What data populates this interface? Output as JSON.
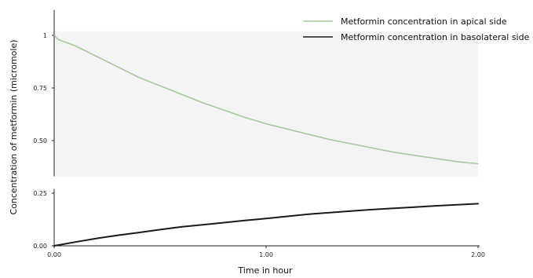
{
  "chart_data": {
    "type": "line",
    "title": "",
    "xlabel": "Time in hour",
    "ylabel": "Concentration of metformin (micromole)",
    "xlim": [
      0,
      2
    ],
    "ylim": [
      0,
      1.0
    ],
    "x_ticks": [
      {
        "value": 0,
        "label": "0.00"
      },
      {
        "value": 1,
        "label": "1.00"
      },
      {
        "value": 2,
        "label": "2.00"
      }
    ],
    "y_ticks": [
      {
        "value": 0,
        "label": "0.00"
      },
      {
        "value": 0.25,
        "label": "0.25"
      },
      {
        "value": 0.5,
        "label": "0.50"
      },
      {
        "value": 0.75,
        "label": "0.75"
      },
      {
        "value": 1,
        "label": "1"
      }
    ],
    "y_axis_break": [
      0.27,
      0.33
    ],
    "grid": false,
    "legend_position": "top-right",
    "series": [
      {
        "name": "Metformin concentration in apical side",
        "color": "#a8c8a0",
        "x": [
          0,
          0.02,
          0.1,
          0.2,
          0.3,
          0.4,
          0.5,
          0.6,
          0.7,
          0.8,
          0.9,
          1.0,
          1.1,
          1.2,
          1.3,
          1.4,
          1.5,
          1.6,
          1.7,
          1.8,
          1.9,
          2.0
        ],
        "y": [
          1.0,
          0.98,
          0.95,
          0.9,
          0.85,
          0.8,
          0.76,
          0.72,
          0.68,
          0.645,
          0.61,
          0.58,
          0.555,
          0.53,
          0.505,
          0.485,
          0.465,
          0.445,
          0.43,
          0.415,
          0.4,
          0.39
        ]
      },
      {
        "name": "Metformin concentration in basolateral side",
        "color": "#1a1a1a",
        "x": [
          0,
          0.1,
          0.2,
          0.3,
          0.4,
          0.5,
          0.6,
          0.7,
          0.8,
          0.9,
          1.0,
          1.1,
          1.2,
          1.3,
          1.4,
          1.5,
          1.6,
          1.7,
          1.8,
          1.9,
          2.0
        ],
        "y": [
          0.0,
          0.018,
          0.035,
          0.05,
          0.063,
          0.077,
          0.09,
          0.1,
          0.11,
          0.12,
          0.13,
          0.14,
          0.15,
          0.158,
          0.165,
          0.172,
          0.178,
          0.184,
          0.19,
          0.195,
          0.2
        ]
      }
    ]
  }
}
